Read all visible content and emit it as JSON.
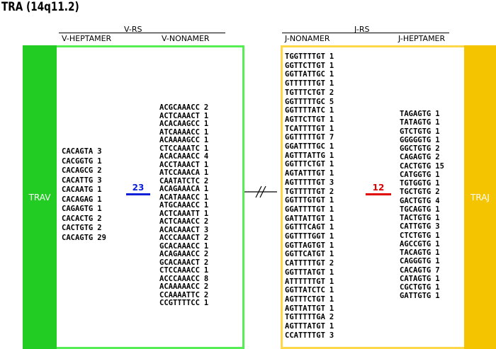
{
  "title": "TRA (14q11.2)",
  "left": {
    "group": "V-RS",
    "heptamer_header": "V-HEPTAMER",
    "nonamer_header": "V-NONAMER",
    "segment": "TRAV",
    "spacer": "23",
    "heptamers": [
      [
        "CACAGTA",
        "3"
      ],
      [
        "CACGGTG",
        "1"
      ],
      [
        "CACAGCG",
        "2"
      ],
      [
        "CACATTG",
        "3"
      ],
      [
        "CACAATG",
        "1"
      ],
      [
        "CACAGAG",
        "1"
      ],
      [
        "CAGAGTG",
        "1"
      ],
      [
        "CACACTG",
        "2"
      ],
      [
        "CACTGTG",
        "2"
      ],
      [
        "CACAGTG",
        "29"
      ]
    ],
    "nonamers": [
      [
        "ACGCAAACC",
        "2"
      ],
      [
        "ACTCAAACT",
        "1"
      ],
      [
        "ACACAAGCC",
        "1"
      ],
      [
        "ATCAAAACC",
        "1"
      ],
      [
        "ACAAAAGCC",
        "1"
      ],
      [
        "CTCCAAATC",
        "1"
      ],
      [
        "ACACAAACC",
        "4"
      ],
      [
        "ACCTAAACT",
        "1"
      ],
      [
        "ATCCAAACA",
        "1"
      ],
      [
        "CAATATCTC",
        "2"
      ],
      [
        "ACAGAAACA",
        "1"
      ],
      [
        "ACATAAACC",
        "1"
      ],
      [
        "ATGCAAACC",
        "1"
      ],
      [
        "ACTCAAATT",
        "1"
      ],
      [
        "ACTCAAACC",
        "2"
      ],
      [
        "ACACAAACT",
        "3"
      ],
      [
        "ACCCAAACT",
        "2"
      ],
      [
        "GCACAAACC",
        "1"
      ],
      [
        "ACAGAAACC",
        "2"
      ],
      [
        "GCACAAACT",
        "2"
      ],
      [
        "CTCCAAACC",
        "1"
      ],
      [
        "ACCCAAACC",
        "8"
      ],
      [
        "ACAAAAACC",
        "2"
      ],
      [
        "CCAAAATTC",
        "2"
      ],
      [
        "CCGTTTTCC",
        "1"
      ]
    ]
  },
  "right": {
    "group": "J-RS",
    "nonamer_header": "J-NONAMER",
    "heptamer_header": "J-HEPTAMER",
    "segment": "TRAJ",
    "spacer": "12",
    "nonamers": [
      [
        "TGGTTTTGT",
        "1"
      ],
      [
        "GGTTCTTGT",
        "1"
      ],
      [
        "GGTTATTGC",
        "1"
      ],
      [
        "GTTTTTTGT",
        "1"
      ],
      [
        "TGTTTCTGT",
        "2"
      ],
      [
        "GGTTTTTGC",
        "5"
      ],
      [
        "GGTTTTATC",
        "1"
      ],
      [
        "AGTTCTTGT",
        "1"
      ],
      [
        "TCATTTTGT",
        "1"
      ],
      [
        "GGTTTTTGT",
        "7"
      ],
      [
        "GGATTTTGC",
        "1"
      ],
      [
        "AGTTTATTG",
        "1"
      ],
      [
        "GGTTTCTGT",
        "1"
      ],
      [
        "AGTATTTGT",
        "1"
      ],
      [
        "AGTTTTTGT",
        "3"
      ],
      [
        "TGTTTTTGT",
        "2"
      ],
      [
        "GGTTTGTGT",
        "1"
      ],
      [
        "GGATTTTGT",
        "1"
      ],
      [
        "GATTATTGT",
        "1"
      ],
      [
        "GGTTTCAGT",
        "1"
      ],
      [
        "GGTTTTGGT",
        "1"
      ],
      [
        "GGTTAGTGT",
        "1"
      ],
      [
        "GGTTCATGT",
        "1"
      ],
      [
        "CATTTTTGT",
        "2"
      ],
      [
        "GGTTTATGT",
        "1"
      ],
      [
        "ATTTTTTGT",
        "1"
      ],
      [
        "GGTTATCTC",
        "1"
      ],
      [
        "AGTTTCTGT",
        "1"
      ],
      [
        "AGTTATTGT",
        "1"
      ],
      [
        "TGTTTTTGA",
        "2"
      ],
      [
        "AGTTTATGT",
        "1"
      ],
      [
        "CCATTTTGT",
        "3"
      ]
    ],
    "heptamers": [
      [
        "TAGAGTG",
        "1"
      ],
      [
        "TATAGTG",
        "1"
      ],
      [
        "GTCTGTG",
        "1"
      ],
      [
        "GGGGGTG",
        "1"
      ],
      [
        "GGCTGTG",
        "2"
      ],
      [
        "CAGAGTG",
        "2"
      ],
      [
        "CACTGTG",
        "15"
      ],
      [
        "CATGGTG",
        "1"
      ],
      [
        "TGTGGTG",
        "1"
      ],
      [
        "TGCTGTG",
        "2"
      ],
      [
        "GACTGTG",
        "4"
      ],
      [
        "TGCAGTG",
        "1"
      ],
      [
        "TACTGTG",
        "1"
      ],
      [
        "CATTGTG",
        "3"
      ],
      [
        "CTCTGTG",
        "1"
      ],
      [
        "AGCCGTG",
        "1"
      ],
      [
        "TACAGTG",
        "1"
      ],
      [
        "CAGGGTG",
        "1"
      ],
      [
        "CACAGTG",
        "7"
      ],
      [
        "CATAGTG",
        "1"
      ],
      [
        "CGCTGTG",
        "1"
      ],
      [
        "GATTGTG",
        "1"
      ]
    ]
  }
}
